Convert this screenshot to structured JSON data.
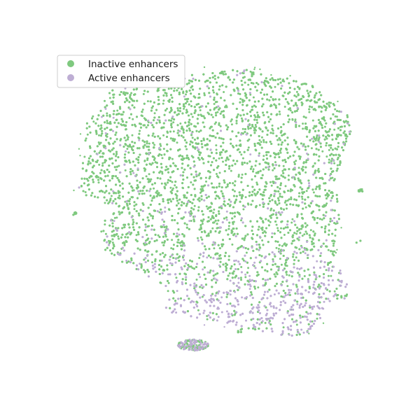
{
  "chart_data": {
    "type": "scatter",
    "title": "",
    "xlabel": "",
    "ylabel": "",
    "axes_visible": false,
    "grid": false,
    "legend_position": "upper-left",
    "series": [
      {
        "name": "Inactive enhancers",
        "color": "#7fc97f",
        "share": 0.82
      },
      {
        "name": "Active enhancers",
        "color": "#beaed4",
        "share": 0.18
      }
    ],
    "regions": [
      {
        "label": "main-cluster",
        "density": "very high",
        "active_fraction": "low at top, high at bottom"
      },
      {
        "label": "small-bottom-cluster",
        "density": "low",
        "active_fraction": "mixed"
      }
    ]
  }
}
